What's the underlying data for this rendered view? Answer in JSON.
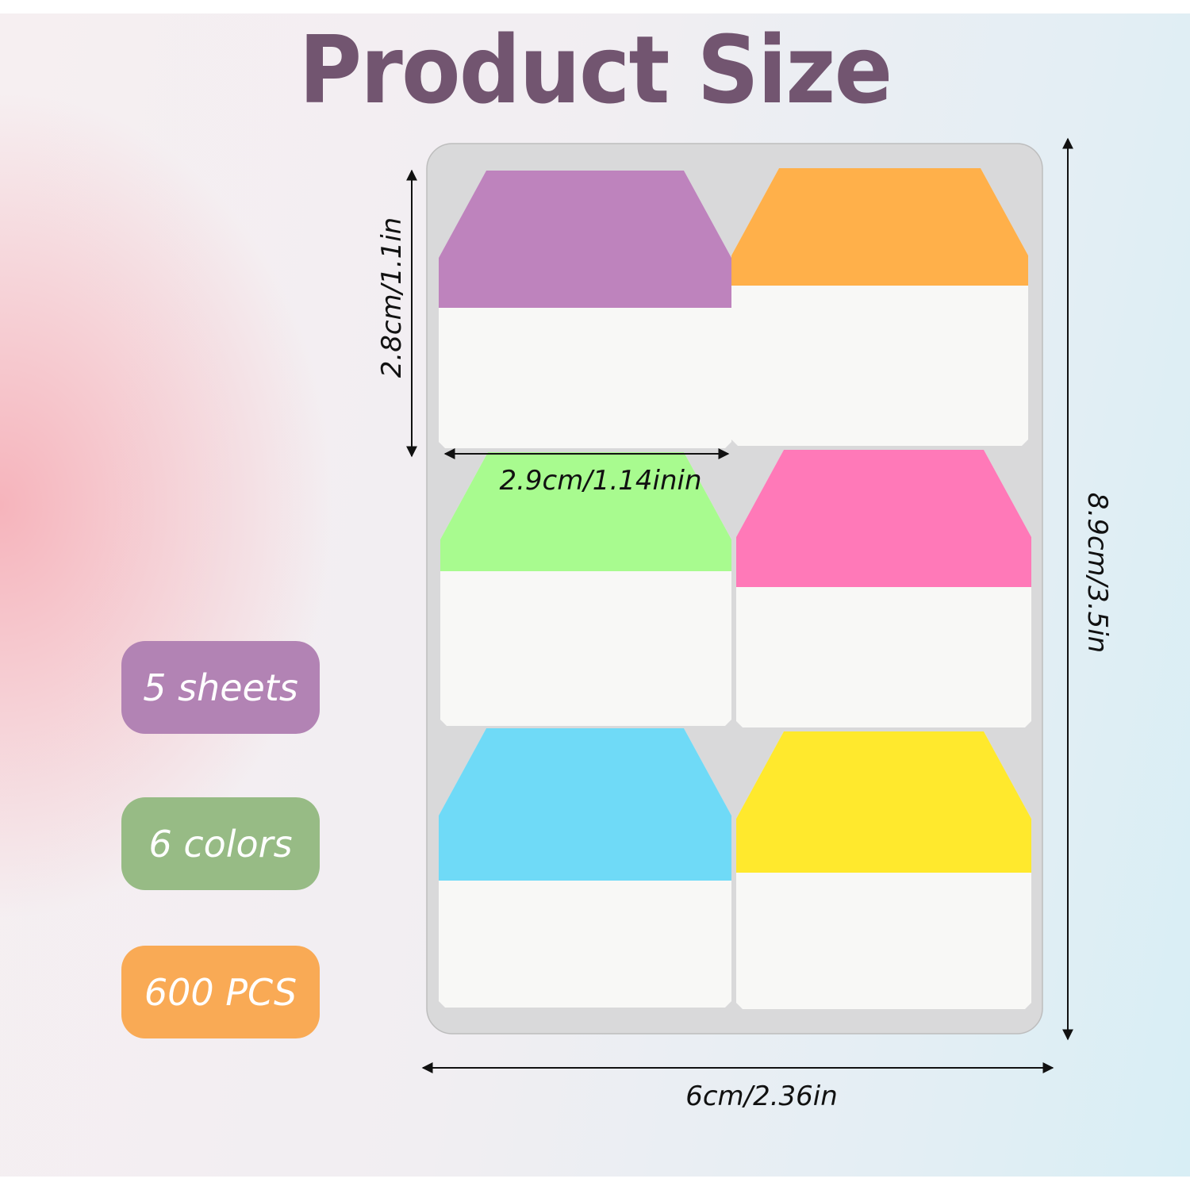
{
  "title": "Product Size",
  "dimensions": {
    "tab_width": "2.9cm/1.14inin",
    "tab_height": "2.8cm/1.1in",
    "sheet_width": "6cm/2.36in",
    "sheet_height": "8.9cm/3.5in"
  },
  "badges": [
    {
      "label": "5 sheets",
      "color": "#b283b4"
    },
    {
      "label": "6 colors",
      "color": "#97bb85"
    },
    {
      "label": "600 PCS",
      "color": "#f9aa55"
    }
  ],
  "tab_colors": [
    "#be83bd",
    "#ffb04a",
    "#a8fb8f",
    "#ff79b8",
    "#6fdaf7",
    "#ffe92d"
  ],
  "colors": {
    "title": "#725570",
    "sheet": "#d9d9da"
  }
}
